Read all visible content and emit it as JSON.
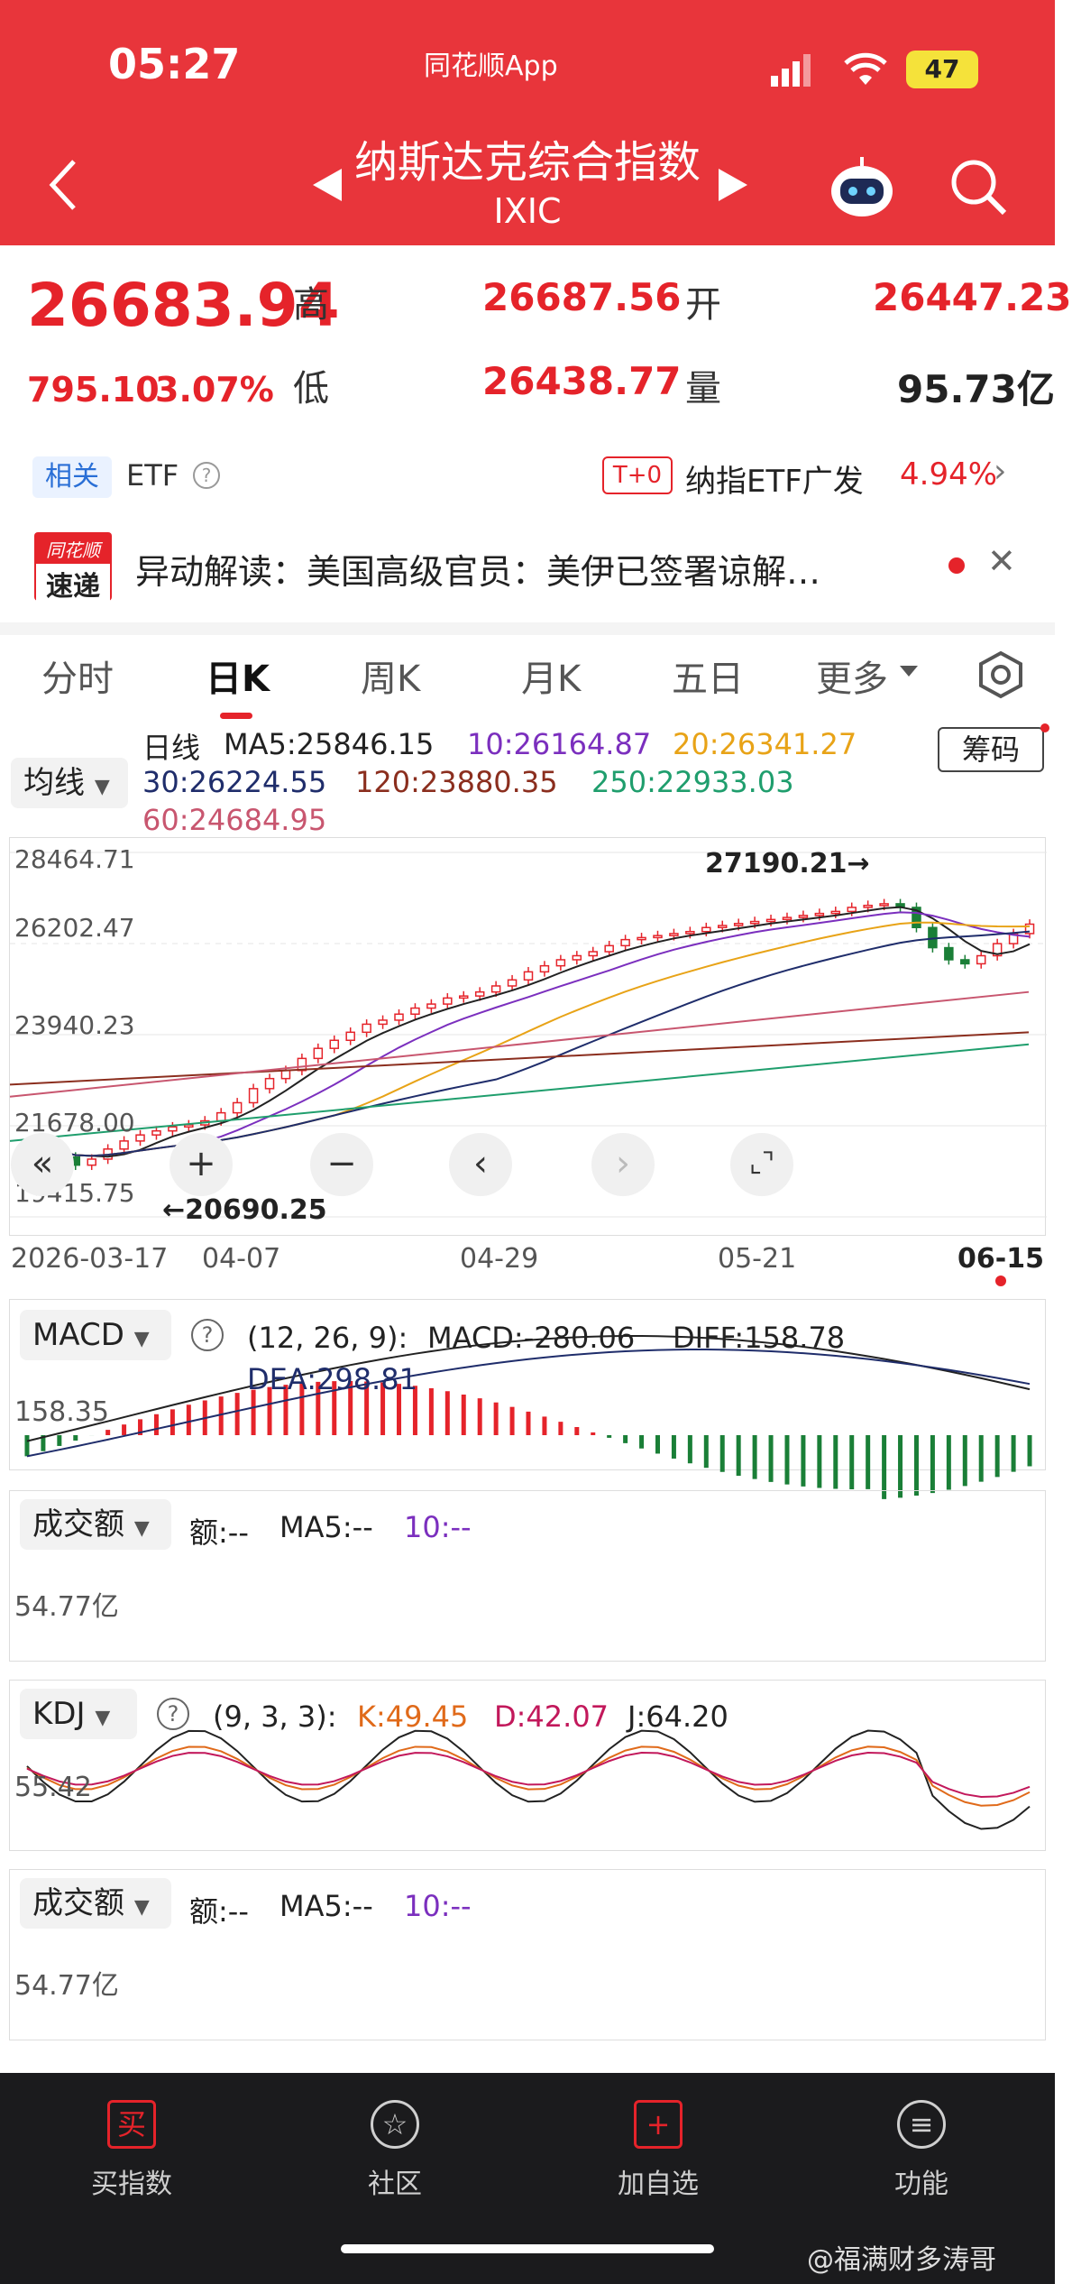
{
  "status": {
    "time": "05:27",
    "app_label": "同花顺App",
    "battery": "47"
  },
  "header": {
    "title": "纳斯达克综合指数",
    "code": "IXIC"
  },
  "quote": {
    "price": "26683.94",
    "change": "795.10",
    "change_pct": "3.07%",
    "high_label": "高",
    "high": "26687.56",
    "open_label": "开",
    "open": "26447.23",
    "low_label": "低",
    "low": "26438.77",
    "volume_label": "量",
    "volume": "95.73亿"
  },
  "related": {
    "tag": "相关",
    "type": "ETF",
    "badge": "T+0",
    "etf_name": "纳指ETF广发",
    "etf_change": "4.94%"
  },
  "news": {
    "logo_top": "同花顺",
    "logo_bottom": "速递",
    "text": "异动解读：美国高级官员：美伊已签署谅解…"
  },
  "tabs": [
    "分时",
    "日K",
    "周K",
    "月K",
    "五日",
    "更多"
  ],
  "active_tab": "日K",
  "ma": {
    "dropdown": "均线",
    "label": "日线",
    "chip_button": "筹码",
    "ma5": "MA5:25846.15",
    "ma10": "10:26164.87",
    "ma20": "20:26341.27",
    "ma30": "30:26224.55",
    "ma120": "120:23880.35",
    "ma250": "250:22933.03",
    "ma60": "60:24684.95"
  },
  "chart_data": {
    "type": "line",
    "y_ticks": [
      "28464.71",
      "26202.47",
      "23940.23",
      "21678.00",
      "19415.75"
    ],
    "x_ticks": [
      "2026-03-17",
      "04-07",
      "04-29",
      "05-21",
      "06-15"
    ],
    "max_annotation": "27190.21→",
    "min_annotation": "←20690.25",
    "ylim": [
      19415.75,
      28464.71
    ],
    "close": [
      21200,
      21000,
      20900,
      20700,
      20850,
      21100,
      21300,
      21450,
      21550,
      21650,
      21700,
      21800,
      22000,
      22250,
      22600,
      22850,
      23050,
      23350,
      23600,
      23800,
      24000,
      24200,
      24300,
      24450,
      24600,
      24700,
      24850,
      24900,
      25000,
      25150,
      25300,
      25500,
      25650,
      25800,
      25900,
      26000,
      26150,
      26300,
      26350,
      26400,
      26450,
      26500,
      26600,
      26650,
      26700,
      26750,
      26800,
      26850,
      26900,
      26950,
      27000,
      27100,
      27150,
      27190,
      27100,
      26600,
      26100,
      25800,
      25700,
      25900,
      26200,
      26450,
      26684
    ]
  },
  "controls": {
    "back": "«",
    "zoom_in": "+",
    "zoom_out": "−",
    "prev": "‹",
    "next": "›",
    "fullscreen": "⌞⌝"
  },
  "macd": {
    "name": "MACD",
    "help": "?",
    "params": "(12, 26, 9):",
    "macd": "MACD:-280.06",
    "diff": "DIFF:158.78",
    "dea": "DEA:298.81",
    "level": "158.35"
  },
  "volume1": {
    "name": "成交额",
    "amount": "额:--",
    "ma5": "MA5:--",
    "ma10": "10:--",
    "level": "54.77亿"
  },
  "kdj": {
    "name": "KDJ",
    "help": "?",
    "params": "(9, 3, 3):",
    "k": "K:49.45",
    "d": "D:42.07",
    "j": "J:64.20",
    "level": "55.42"
  },
  "volume2": {
    "name": "成交额",
    "amount": "额:--",
    "ma5": "MA5:--",
    "ma10": "10:--",
    "level": "54.77亿"
  },
  "tabbar": [
    {
      "label": "买指数",
      "icon": "买"
    },
    {
      "label": "社区",
      "icon": "☆"
    },
    {
      "label": "加自选",
      "icon": "+"
    },
    {
      "label": "功能",
      "icon": "≡"
    }
  ],
  "watermark": "@福满财多涛哥",
  "colors": {
    "red": "#e5232a",
    "green": "#1a7f37",
    "header": "#e8353b",
    "purple": "#7b2fbe",
    "orange": "#e8a317",
    "navy": "#1f2d6b",
    "brown": "#8b2e1e",
    "teal": "#1f9e6d",
    "pink": "#c8566f"
  }
}
